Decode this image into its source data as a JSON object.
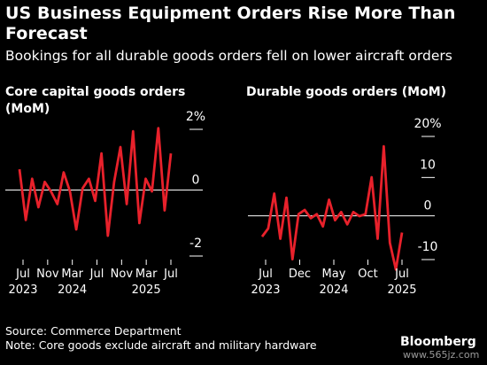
{
  "headline": "US Business Equipment Orders Rise More Than Forecast",
  "subtitle": "Bookings for all durable goods orders fell on lower aircraft orders",
  "footer": {
    "source": "Source: Commerce Department",
    "note": "Note: Core goods exclude aircraft and military hardware",
    "brand": "Bloomberg",
    "watermark": "www.565jz.com"
  },
  "colors": {
    "line": "#e8212b",
    "axis": "#ffffff",
    "background": "#000000"
  },
  "chart_data": [
    {
      "type": "line",
      "title": "Core capital goods orders (MoM)",
      "series": [
        {
          "values": [
            0.6,
            -1.0,
            0.3,
            -0.6,
            0.2,
            -0.1,
            -0.5,
            0.5,
            -0.1,
            -1.3,
            0.0,
            0.3,
            -0.4,
            1.1,
            -1.5,
            0.2,
            1.3,
            -0.5,
            1.8,
            -1.1,
            0.3,
            -0.1,
            1.9,
            -0.7,
            1.1
          ]
        }
      ],
      "ylim": [
        -2,
        2
      ],
      "yticks": [
        {
          "value": 2,
          "label": "2%"
        },
        {
          "value": 0,
          "label": "0"
        },
        {
          "value": -2,
          "label": "-2"
        }
      ],
      "xticks": [
        {
          "month": "Jul",
          "year": "2023"
        },
        {
          "month": "Nov",
          "year": ""
        },
        {
          "month": "Mar",
          "year": "2024"
        },
        {
          "month": "Jul",
          "year": ""
        },
        {
          "month": "Nov",
          "year": ""
        },
        {
          "month": "Mar",
          "year": "2025"
        },
        {
          "month": "Jul",
          "year": ""
        }
      ]
    },
    {
      "type": "line",
      "title": "Durable goods orders (MoM)",
      "series": [
        {
          "values": [
            -5.5,
            -3.5,
            5.0,
            -6.0,
            4.0,
            -11.0,
            0.0,
            1.0,
            -1.0,
            0.0,
            -3.0,
            3.5,
            -1.5,
            0.5,
            -2.5,
            0.5,
            -0.5,
            0.0,
            9.0,
            -6.0,
            16.5,
            -7.0,
            -13.5,
            -4.5
          ]
        }
      ],
      "ylim": [
        -10,
        20
      ],
      "yticks": [
        {
          "value": 20,
          "label": "20%"
        },
        {
          "value": 10,
          "label": "10"
        },
        {
          "value": 0,
          "label": "0"
        },
        {
          "value": -10,
          "label": "-10"
        }
      ],
      "xticks": [
        {
          "month": "Jul",
          "year": "2023"
        },
        {
          "month": "Dec",
          "year": ""
        },
        {
          "month": "May",
          "year": "2024"
        },
        {
          "month": "Oct",
          "year": ""
        },
        {
          "month": "Jul",
          "year": "2025"
        }
      ]
    }
  ]
}
